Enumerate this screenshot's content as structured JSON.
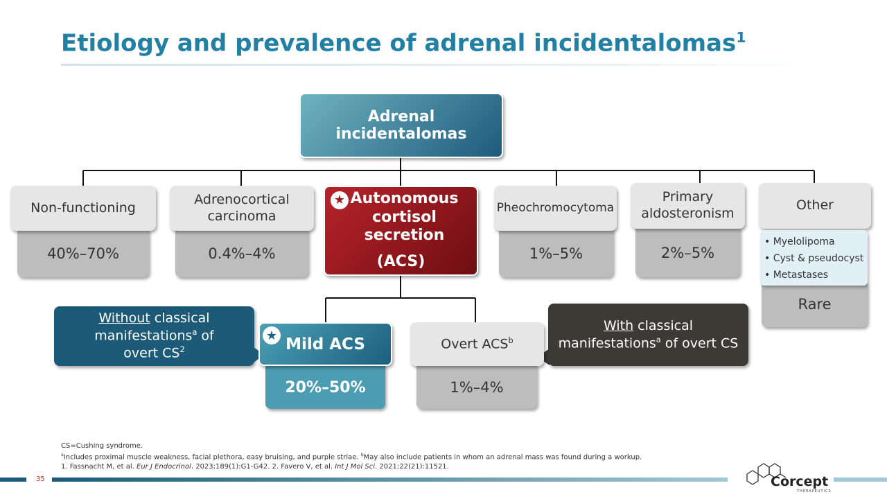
{
  "header": {
    "title": "Etiology and prevalence of adrenal incidentalomas",
    "title_sup": "1"
  },
  "root": {
    "label": "Adrenal incidentalomas"
  },
  "nodes": [
    {
      "label": "Non-functioning",
      "value": "40%–70%"
    },
    {
      "label": "Adrenocortical carcinoma",
      "value": "0.4%–4%"
    },
    {
      "label": "Autonomous cortisol secretion",
      "abbr": "(ACS)"
    },
    {
      "label": "Pheochromocytoma",
      "value": "1%–5%"
    },
    {
      "label": "Primary aldosteronism",
      "value": "2%–5%"
    },
    {
      "label": "Other",
      "items": [
        "Myelolipoma",
        "Cyst & pseudocyst",
        "Metastases"
      ],
      "value": "Rare"
    }
  ],
  "sub_nodes": [
    {
      "label": "Mild ACS",
      "value": "20%–50%"
    },
    {
      "label": "Overt ACS",
      "label_sup": "b",
      "value": "1%–4%"
    }
  ],
  "callouts": [
    {
      "parts": [
        "Without",
        " classical manifestations",
        "a",
        " of overt CS",
        "2"
      ]
    },
    {
      "parts": [
        "With",
        " classical manifestations",
        "a",
        " of overt CS"
      ]
    }
  ],
  "footnotes": [
    {
      "text": "CS=Cushing syndrome."
    },
    {
      "parts": [
        "a",
        "Includes proximal muscle weakness, facial plethora, easy bruising, and purple striae. ",
        "b",
        "May also include patients in whom an adrenal mass was found during a workup."
      ]
    },
    {
      "parts": [
        "1. Fassnacht M, et al. ",
        "Eur J Endocrinol",
        ". 2023;189(1):G1-G42. 2. Favero V, et al. ",
        "Int J Mol Sci",
        ". 2021;22(21):11521."
      ]
    }
  ],
  "footer": {
    "page_number": "35",
    "logo": "Corcept",
    "logo_sub": "THERAPEUTICS"
  }
}
